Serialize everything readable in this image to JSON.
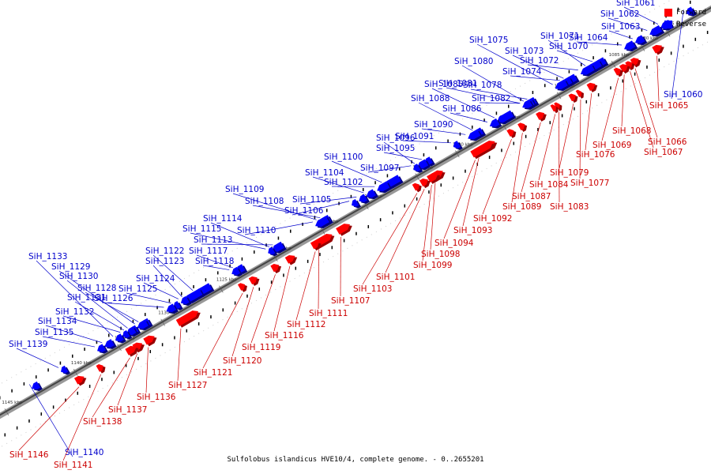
{
  "caption": "Sulfolobus islandicus HVE10/4, complete genome. - 0..2655201",
  "legend": [
    {
      "label": "Forward",
      "color": "#ff0000"
    },
    {
      "label": "Reverse",
      "color": "#0000ff"
    }
  ],
  "colors": {
    "forward_label": "#cc0000",
    "reverse_label": "#0000cc",
    "axis": "#888888"
  },
  "ticks": [
    "1075 kbp",
    "1080 kbp",
    "1085 kbp",
    "1090 kbp",
    "1095 kbp",
    "1100 kbp",
    "1105 kbp",
    "1110 kbp",
    "1115 kbp",
    "1120 kbp",
    "1125 kbp",
    "1130 kbp",
    "1135 kbp",
    "1140 kbp",
    "1145 kbp"
  ],
  "genes_forward": [
    "SiH_1065",
    "SiH_1066",
    "SiH_1067",
    "SiH_1068",
    "SiH_1069",
    "SiH_1076",
    "SiH_1077",
    "SiH_1079",
    "SiH_1083",
    "SiH_1084",
    "SiH_1087",
    "SiH_1089",
    "SiH_1092",
    "SiH_1093",
    "SiH_1094",
    "SiH_1098",
    "SiH_1099",
    "SiH_1101",
    "SiH_1103",
    "SiH_1107",
    "SiH_1111",
    "SiH_1112",
    "SiH_1116",
    "SiH_1119",
    "SiH_1120",
    "SiH_1121",
    "SiH_1127",
    "SiH_1136",
    "SiH_1137",
    "SiH_1138",
    "SiH_1141",
    "SiH_1146"
  ],
  "genes_reverse": [
    "SiH_1060",
    "SiH_1061",
    "SiH_1062",
    "SiH_1063",
    "SiH_1064",
    "SiH_1070",
    "SiH_1071",
    "SiH_1072",
    "SiH_1073",
    "SiH_1074",
    "SiH_1075",
    "SiH_1078",
    "SiH_1080",
    "SiH_1081",
    "SiH_1082",
    "SiH_1085",
    "SiH_1086",
    "SiH_1088",
    "SiH_1090",
    "SiH_1091",
    "SiH_1095",
    "SiH_1096",
    "SiH_1097",
    "SiH_1100",
    "SiH_1102",
    "SiH_1104",
    "SiH_1105",
    "SiH_1106",
    "SiH_1108",
    "SiH_1109",
    "SiH_1110",
    "SiH_1113",
    "SiH_1114",
    "SiH_1115",
    "SiH_1117",
    "SiH_1118",
    "SiH_1122",
    "SiH_1123",
    "SiH_1124",
    "SiH_1125",
    "SiH_1126",
    "SiH_1128",
    "SiH_1129",
    "SiH_1130",
    "SiH_1131",
    "SiH_1132",
    "SiH_1133",
    "SiH_1134",
    "SiH_1135",
    "SiH_1139",
    "SiH_1140"
  ]
}
